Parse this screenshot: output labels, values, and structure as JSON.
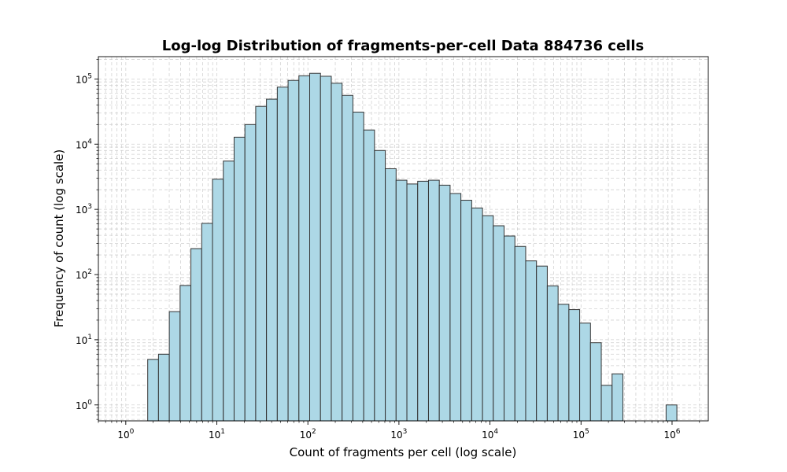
{
  "chart_data": {
    "type": "bar",
    "title": "Log-log Distribution of fragments-per-cell Data 884736 cells",
    "xlabel": "Count of fragments per cell (log scale)",
    "ylabel": "Frequency of count (log scale)",
    "x_scale": "log",
    "y_scale": "log",
    "xlim": [
      0.5,
      2500000
    ],
    "ylim": [
      0.57,
      220000
    ],
    "x_tick_labels": [
      {
        "base": "10",
        "exp": "0"
      },
      {
        "base": "10",
        "exp": "1"
      },
      {
        "base": "10",
        "exp": "2"
      },
      {
        "base": "10",
        "exp": "3"
      },
      {
        "base": "10",
        "exp": "4"
      },
      {
        "base": "10",
        "exp": "5"
      },
      {
        "base": "10",
        "exp": "6"
      }
    ],
    "y_tick_labels": [
      {
        "base": "10",
        "exp": "0"
      },
      {
        "base": "10",
        "exp": "1"
      },
      {
        "base": "10",
        "exp": "2"
      },
      {
        "base": "10",
        "exp": "3"
      },
      {
        "base": "10",
        "exp": "4"
      },
      {
        "base": "10",
        "exp": "5"
      }
    ],
    "grid": true,
    "bar_color": "#add8e6",
    "edge_color": "#333333",
    "bin_edges": [
      1.741,
      2.287,
      3.006,
      3.95,
      5.19,
      6.82,
      8.96,
      11.78,
      15.48,
      20.34,
      26.73,
      35.12,
      46.15,
      60.65,
      79.69,
      104.7,
      137.6,
      180.8,
      237.6,
      312.3,
      410.3,
      539.2,
      708.5,
      931.0,
      1223.4,
      1607.6,
      2112.6,
      2776.0,
      3647.8,
      4793.4,
      6298.7,
      8276.9,
      10876,
      14292,
      18780,
      24678,
      32428,
      42613,
      55996,
      73582,
      96690,
      127055,
      166957,
      219390,
      288289,
      378826,
      497796,
      654131,
      859565,
      1129513
    ],
    "values": [
      5,
      6,
      27,
      68,
      250,
      610,
      2900,
      5500,
      12800,
      20000,
      38000,
      49000,
      75000,
      95000,
      112000,
      122000,
      110000,
      86000,
      56000,
      31000,
      16500,
      8000,
      4200,
      2800,
      2450,
      2700,
      2800,
      2350,
      1750,
      1380,
      1050,
      800,
      560,
      390,
      270,
      162,
      135,
      67,
      35,
      29,
      18,
      9,
      2,
      3,
      0,
      0,
      0,
      0,
      1
    ]
  }
}
